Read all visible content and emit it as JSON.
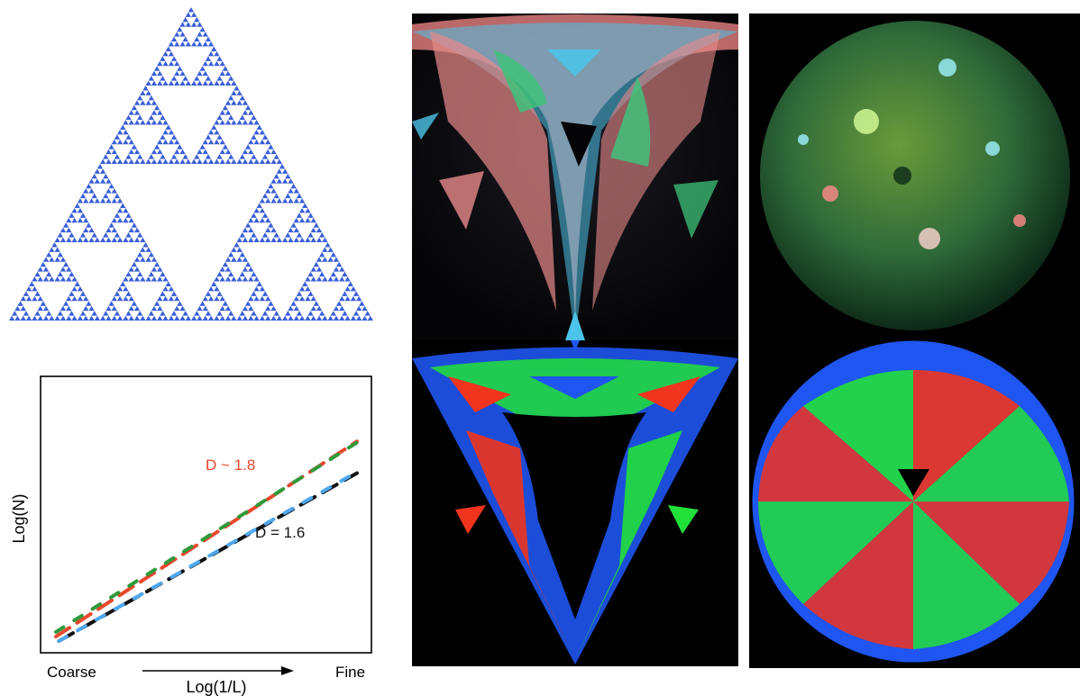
{
  "figure": {
    "panels": [
      "sierpinski-triangle",
      "log-log-plot",
      "photo-triangular-fractal",
      "simulated-triangular-fractal",
      "photo-sphere-fractal",
      "simulated-sphere-fractal"
    ]
  },
  "chart_data": {
    "type": "line",
    "title": "",
    "xlabel": "Log(1/L)",
    "ylabel": "Log(N)",
    "x_left_label": "Coarse",
    "x_right_label": "Fine",
    "grid": false,
    "series": [
      {
        "color": "#e8472b",
        "style": "dashed",
        "x": [
          0,
          1
        ],
        "y": [
          0.02,
          0.88
        ]
      },
      {
        "color": "#2e9a3a",
        "style": "dashed",
        "x": [
          0,
          1
        ],
        "y": [
          0.04,
          0.875
        ]
      },
      {
        "color": "#111111",
        "style": "dashed",
        "x": [
          0.01,
          1
        ],
        "y": [
          0.0,
          0.74
        ]
      },
      {
        "color": "#4ea8ee",
        "style": "dashed",
        "x": [
          0.01,
          0.98
        ],
        "y": [
          0.0,
          0.73
        ]
      }
    ],
    "annotations": [
      {
        "text": "D ~ 1.8",
        "color": "#e8472b"
      },
      {
        "text": "D = 1.6",
        "color": "#111111"
      }
    ]
  },
  "colors": {
    "sierpinski": "#3a5fd6",
    "red": "#f0341e",
    "green": "#22e03a",
    "blue": "#1f55f0",
    "photo_pink": "#e98a8a",
    "photo_cyan": "#4cc3e8",
    "photo_green": "#3fc27a"
  }
}
